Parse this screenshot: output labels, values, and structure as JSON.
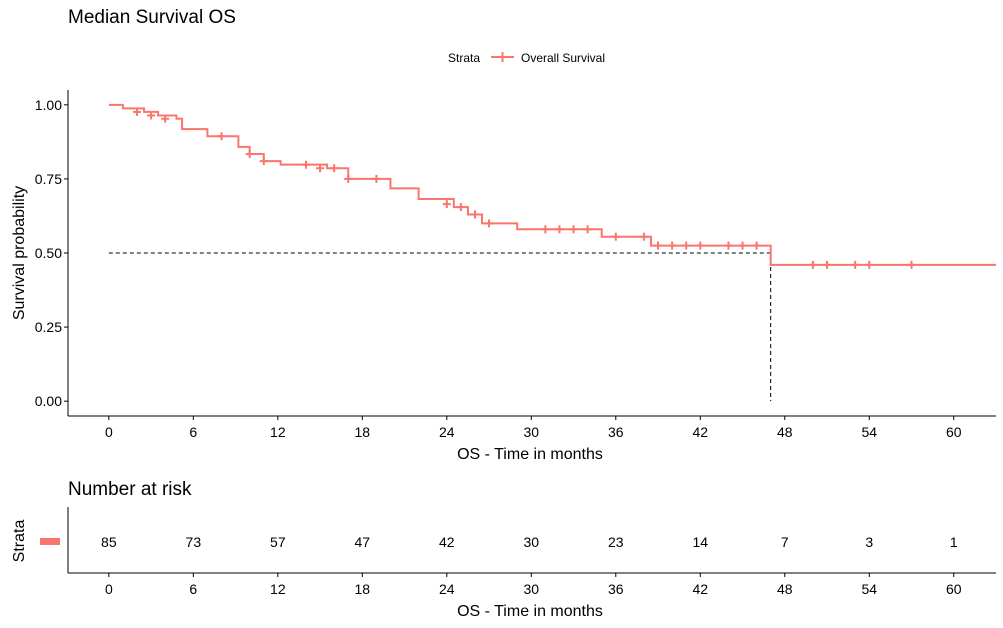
{
  "chart_data": [
    {
      "type": "line",
      "title": "Median Survival OS",
      "xlabel": "OS - Time in months",
      "ylabel": "Survival probability",
      "legend": {
        "title": "Strata",
        "entries": [
          "Overall Survival"
        ],
        "position": "top"
      },
      "color": "#F8766D",
      "xlim": [
        -2.9,
        63
      ],
      "ylim": [
        -0.05,
        1.05
      ],
      "xticks": [
        0,
        6,
        12,
        18,
        24,
        30,
        36,
        42,
        48,
        54,
        60
      ],
      "xtick_labels": [
        "0",
        "6",
        "12",
        "18",
        "24",
        "30",
        "36",
        "42",
        "48",
        "54",
        "60"
      ],
      "yticks": [
        0,
        0.25,
        0.5,
        0.75,
        1.0
      ],
      "ytick_labels": [
        "0.00",
        "0.25",
        "0.50",
        "0.75",
        "1.00"
      ],
      "series": [
        {
          "name": "Overall Survival",
          "step_points": [
            [
              0,
              1.0
            ],
            [
              1,
              0.988
            ],
            [
              2.5,
              0.976
            ],
            [
              3.5,
              0.964
            ],
            [
              4.8,
              0.953
            ],
            [
              5.2,
              0.918
            ],
            [
              7,
              0.894
            ],
            [
              9.2,
              0.858
            ],
            [
              10,
              0.834
            ],
            [
              11,
              0.81
            ],
            [
              12.2,
              0.798
            ],
            [
              15.5,
              0.786
            ],
            [
              17,
              0.75
            ],
            [
              20,
              0.718
            ],
            [
              22,
              0.682
            ],
            [
              24.5,
              0.655
            ],
            [
              25.5,
              0.63
            ],
            [
              26.5,
              0.6
            ],
            [
              29,
              0.58
            ],
            [
              35,
              0.555
            ],
            [
              38.5,
              0.525
            ],
            [
              47,
              0.46
            ],
            [
              63,
              0.46
            ]
          ],
          "censored": [
            [
              2,
              0.976
            ],
            [
              3,
              0.964
            ],
            [
              4,
              0.953
            ],
            [
              8,
              0.894
            ],
            [
              10,
              0.834
            ],
            [
              11,
              0.81
            ],
            [
              14,
              0.798
            ],
            [
              15,
              0.786
            ],
            [
              16,
              0.786
            ],
            [
              17,
              0.75
            ],
            [
              19,
              0.75
            ],
            [
              24,
              0.665
            ],
            [
              25,
              0.655
            ],
            [
              26,
              0.63
            ],
            [
              27,
              0.6
            ],
            [
              31,
              0.58
            ],
            [
              32,
              0.58
            ],
            [
              33,
              0.58
            ],
            [
              34,
              0.58
            ],
            [
              36,
              0.555
            ],
            [
              38,
              0.555
            ],
            [
              39,
              0.525
            ],
            [
              40,
              0.525
            ],
            [
              41,
              0.525
            ],
            [
              42,
              0.525
            ],
            [
              44,
              0.525
            ],
            [
              45,
              0.525
            ],
            [
              46,
              0.525
            ],
            [
              50,
              0.46
            ],
            [
              51,
              0.46
            ],
            [
              53,
              0.46
            ],
            [
              54,
              0.46
            ],
            [
              57,
              0.46
            ]
          ]
        }
      ],
      "median_line": {
        "y": 0.5,
        "x": 47
      }
    },
    {
      "type": "table",
      "title": "Number at risk",
      "xlabel": "OS - Time in months",
      "ylabel": "Strata",
      "xticks": [
        0,
        6,
        12,
        18,
        24,
        30,
        36,
        42,
        48,
        54,
        60
      ],
      "xtick_labels": [
        "0",
        "6",
        "12",
        "18",
        "24",
        "30",
        "36",
        "42",
        "48",
        "54",
        "60"
      ],
      "at_risk": [
        85,
        73,
        57,
        47,
        42,
        30,
        23,
        14,
        7,
        3,
        1
      ]
    }
  ]
}
